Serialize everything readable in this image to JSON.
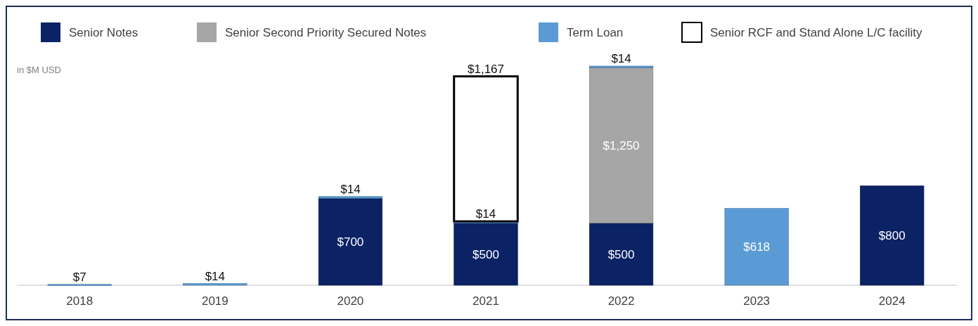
{
  "chart_data": {
    "type": "bar",
    "stacked": true,
    "categories": [
      "2018",
      "2019",
      "2020",
      "2021",
      "2022",
      "2023",
      "2024"
    ],
    "series": [
      {
        "name": "Senior Notes",
        "color": "#0b2265",
        "values": [
          null,
          null,
          700,
          500,
          500,
          null,
          800
        ],
        "value_labels": [
          null,
          null,
          "$700",
          "$500",
          "$500",
          null,
          "$800"
        ]
      },
      {
        "name": "Senior Second Priority Secured Notes",
        "color": "#a6a6a6",
        "values": [
          null,
          null,
          null,
          null,
          1250,
          null,
          null
        ],
        "value_labels": [
          null,
          null,
          null,
          null,
          "$1,250",
          null,
          null
        ]
      },
      {
        "name": "Term Loan",
        "color": "#5b9bd5",
        "values": [
          7,
          14,
          14,
          14,
          14,
          618,
          null
        ],
        "value_labels": [
          "$7",
          "$14",
          "$14",
          "$14",
          "$14",
          "$618",
          null
        ]
      },
      {
        "name": "Senior RCF and Stand Alone L/C facility",
        "color": "#ffffff",
        "values": [
          null,
          null,
          null,
          1167,
          null,
          null,
          null
        ],
        "value_labels": [
          null,
          null,
          null,
          "$1,167",
          null,
          null,
          null
        ]
      }
    ],
    "legend": "top",
    "annotations": [
      "in $M USD"
    ]
  }
}
